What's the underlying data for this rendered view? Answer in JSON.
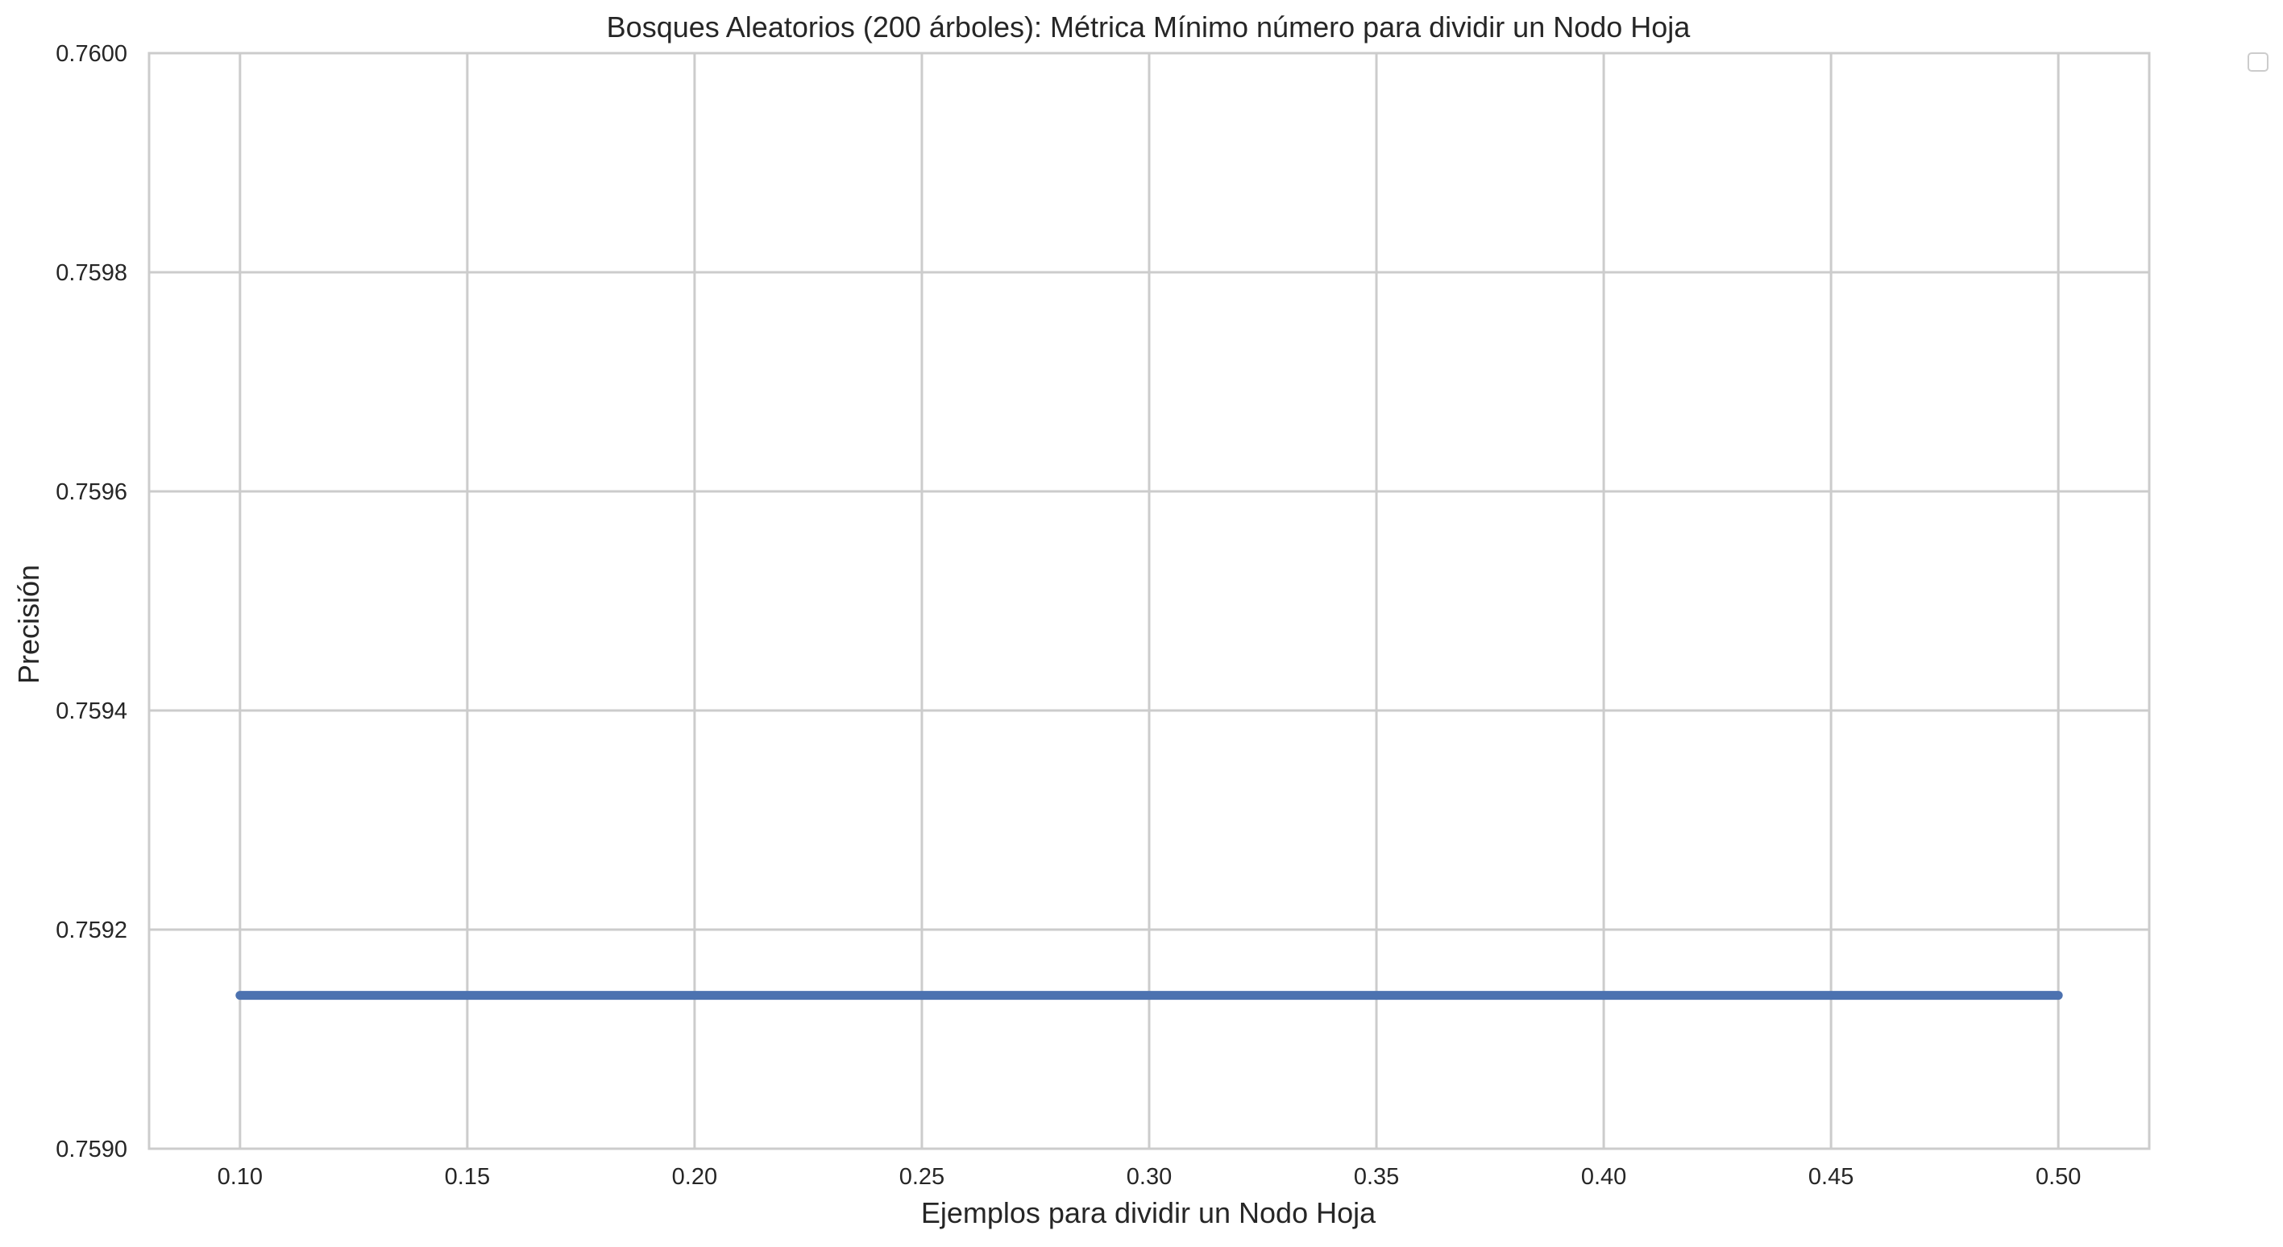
{
  "chart_data": {
    "type": "line",
    "title": "Bosques Aleatorios (200 árboles): Métrica Mínimo número para dividir un Nodo Hoja",
    "xlabel": "Ejemplos para dividir un Nodo Hoja",
    "ylabel": "Precisión",
    "xlim": [
      0.08,
      0.52
    ],
    "ylim": [
      0.759,
      0.76
    ],
    "x_ticks": [
      "0.10",
      "0.15",
      "0.20",
      "0.25",
      "0.30",
      "0.35",
      "0.40",
      "0.45",
      "0.50"
    ],
    "y_ticks": [
      "0.7590",
      "0.7592",
      "0.7594",
      "0.7596",
      "0.7598",
      "0.7600"
    ],
    "grid": true,
    "legend": "top-right, outside the plot, empty",
    "series": [
      {
        "color": "#4c72b0",
        "x": [
          0.1,
          0.15,
          0.2,
          0.25,
          0.3,
          0.35,
          0.4,
          0.45,
          0.5
        ],
        "y": [
          0.75914,
          0.75914,
          0.75914,
          0.75914,
          0.75914,
          0.75914,
          0.75914,
          0.75914,
          0.75914
        ]
      }
    ]
  }
}
